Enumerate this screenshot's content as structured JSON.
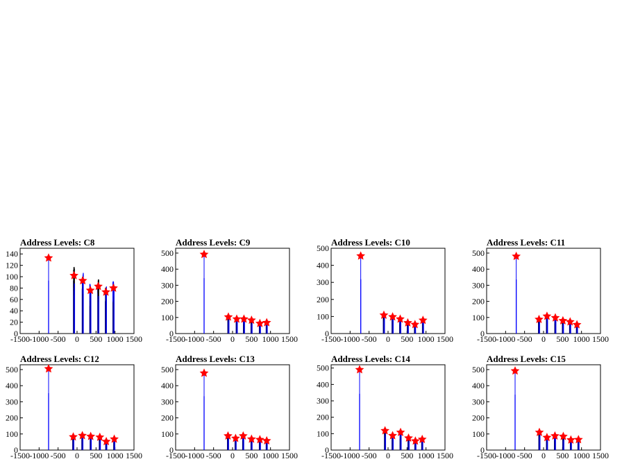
{
  "page": {
    "background": "#ffffff"
  },
  "style": {
    "line_color": "#0000ff",
    "marker_color": "#ff0000",
    "axis_color": "#000000"
  },
  "chart_data": [
    {
      "type": "histogram",
      "title": "Address Levels: C8",
      "xlim": [
        -1500,
        1500
      ],
      "ylim": [
        0,
        150
      ],
      "xticks": [
        "-1500",
        "-1000",
        "-500",
        "0",
        "500",
        "1000",
        "1500"
      ],
      "yticks": [
        "0",
        "20",
        "40",
        "60",
        "80",
        "100",
        "120",
        "140"
      ],
      "peaks": [
        {
          "x": -750,
          "y": 133
        },
        {
          "x": -80,
          "y": 102
        },
        {
          "x": 150,
          "y": 93
        },
        {
          "x": 350,
          "y": 76
        },
        {
          "x": 560,
          "y": 83
        },
        {
          "x": 760,
          "y": 73
        },
        {
          "x": 960,
          "y": 80
        }
      ]
    },
    {
      "type": "histogram",
      "title": "Address Levels: C9",
      "xlim": [
        -1500,
        1500
      ],
      "ylim": [
        0,
        530
      ],
      "xticks": [
        "-1500",
        "-1000",
        "-500",
        "0",
        "500",
        "1000",
        "1500"
      ],
      "yticks": [
        "0",
        "100",
        "200",
        "300",
        "400",
        "500"
      ],
      "peaks": [
        {
          "x": -750,
          "y": 492
        },
        {
          "x": -110,
          "y": 103
        },
        {
          "x": 110,
          "y": 90
        },
        {
          "x": 300,
          "y": 90
        },
        {
          "x": 500,
          "y": 83
        },
        {
          "x": 720,
          "y": 63
        },
        {
          "x": 900,
          "y": 68
        }
      ]
    },
    {
      "type": "histogram",
      "title": "Address Levels: C10",
      "xlim": [
        -1500,
        1500
      ],
      "ylim": [
        0,
        500
      ],
      "xticks": [
        "-1500",
        "-1000",
        "-500",
        "0",
        "500",
        "1000",
        "1500"
      ],
      "yticks": [
        "0",
        "100",
        "200",
        "300",
        "400",
        "500"
      ],
      "peaks": [
        {
          "x": -720,
          "y": 455
        },
        {
          "x": -110,
          "y": 108
        },
        {
          "x": 120,
          "y": 98
        },
        {
          "x": 320,
          "y": 85
        },
        {
          "x": 520,
          "y": 63
        },
        {
          "x": 710,
          "y": 53
        },
        {
          "x": 920,
          "y": 78
        }
      ]
    },
    {
      "type": "histogram",
      "title": "Address Levels: C11",
      "xlim": [
        -1500,
        1500
      ],
      "ylim": [
        0,
        530
      ],
      "xticks": [
        "-1500",
        "-1000",
        "-500",
        "0",
        "500",
        "1000",
        "1500"
      ],
      "yticks": [
        "0",
        "100",
        "200",
        "300",
        "400",
        "500"
      ],
      "peaks": [
        {
          "x": -720,
          "y": 480
        },
        {
          "x": -120,
          "y": 88
        },
        {
          "x": 90,
          "y": 108
        },
        {
          "x": 310,
          "y": 98
        },
        {
          "x": 510,
          "y": 80
        },
        {
          "x": 700,
          "y": 73
        },
        {
          "x": 880,
          "y": 55
        }
      ]
    },
    {
      "type": "histogram",
      "title": "Address Levels: C12",
      "xlim": [
        -1500,
        1500
      ],
      "ylim": [
        0,
        530
      ],
      "xticks": [
        "-1500",
        "-1000",
        "-500",
        "0",
        "500",
        "1000",
        "1500"
      ],
      "yticks": [
        "0",
        "100",
        "200",
        "300",
        "400",
        "500"
      ],
      "peaks": [
        {
          "x": -750,
          "y": 505
        },
        {
          "x": -100,
          "y": 82
        },
        {
          "x": 140,
          "y": 90
        },
        {
          "x": 360,
          "y": 85
        },
        {
          "x": 600,
          "y": 80
        },
        {
          "x": 770,
          "y": 53
        },
        {
          "x": 980,
          "y": 68
        }
      ]
    },
    {
      "type": "histogram",
      "title": "Address Levels: C13",
      "xlim": [
        -1500,
        1500
      ],
      "ylim": [
        0,
        530
      ],
      "xticks": [
        "-1500",
        "-1000",
        "-500",
        "0",
        "500",
        "1000",
        "1500"
      ],
      "yticks": [
        "0",
        "100",
        "200",
        "300",
        "400",
        "500"
      ],
      "peaks": [
        {
          "x": -750,
          "y": 478
        },
        {
          "x": -120,
          "y": 88
        },
        {
          "x": 80,
          "y": 73
        },
        {
          "x": 280,
          "y": 88
        },
        {
          "x": 500,
          "y": 68
        },
        {
          "x": 720,
          "y": 65
        },
        {
          "x": 900,
          "y": 58
        }
      ]
    },
    {
      "type": "histogram",
      "title": "Address Levels: C14",
      "xlim": [
        -1500,
        1500
      ],
      "ylim": [
        0,
        520
      ],
      "xticks": [
        "-1500",
        "-1000",
        "-500",
        "0",
        "500",
        "1000",
        "1500"
      ],
      "yticks": [
        "0",
        "100",
        "200",
        "300",
        "400",
        "500"
      ],
      "peaks": [
        {
          "x": -750,
          "y": 490
        },
        {
          "x": -80,
          "y": 118
        },
        {
          "x": 120,
          "y": 88
        },
        {
          "x": 330,
          "y": 108
        },
        {
          "x": 540,
          "y": 73
        },
        {
          "x": 720,
          "y": 55
        },
        {
          "x": 900,
          "y": 65
        }
      ]
    },
    {
      "type": "histogram",
      "title": "Address Levels: C15",
      "xlim": [
        -1500,
        1500
      ],
      "ylim": [
        0,
        530
      ],
      "xticks": [
        "-1500",
        "-1000",
        "-500",
        "0",
        "500",
        "1000",
        "1500"
      ],
      "yticks": [
        "0",
        "100",
        "200",
        "300",
        "400",
        "500"
      ],
      "peaks": [
        {
          "x": -750,
          "y": 492
        },
        {
          "x": -110,
          "y": 110
        },
        {
          "x": 90,
          "y": 78
        },
        {
          "x": 300,
          "y": 88
        },
        {
          "x": 520,
          "y": 85
        },
        {
          "x": 720,
          "y": 63
        },
        {
          "x": 920,
          "y": 65
        }
      ]
    }
  ]
}
